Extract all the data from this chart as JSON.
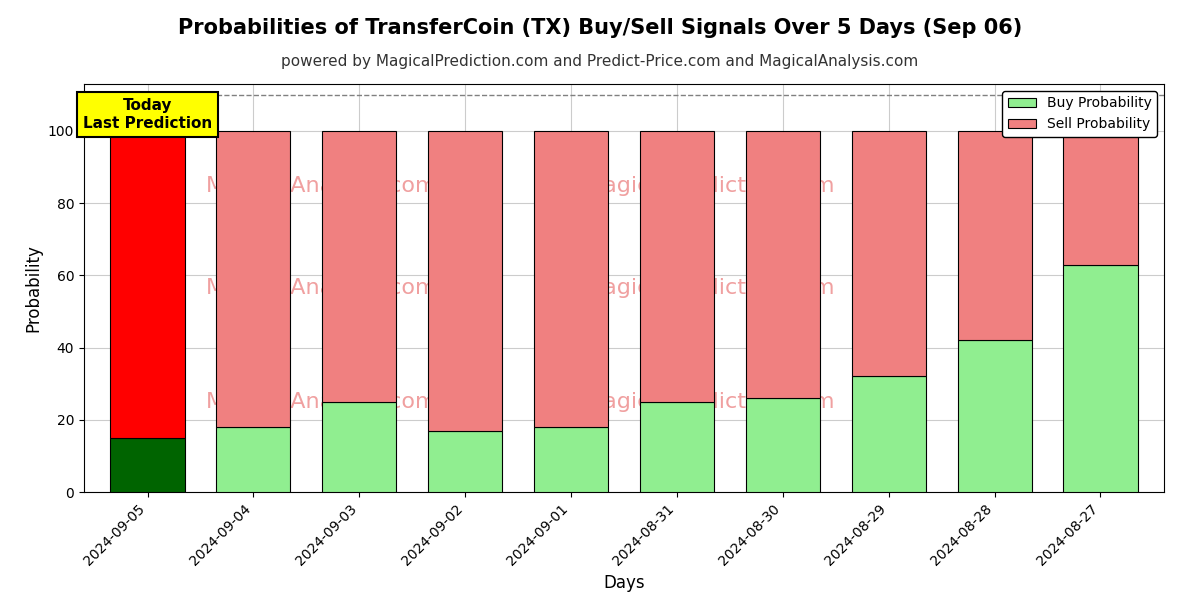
{
  "title": "Probabilities of TransferCoin (TX) Buy/Sell Signals Over 5 Days (Sep 06)",
  "subtitle": "powered by MagicalPrediction.com and Predict-Price.com and MagicalAnalysis.com",
  "xlabel": "Days",
  "ylabel": "Probability",
  "dates": [
    "2024-09-05",
    "2024-09-04",
    "2024-09-03",
    "2024-09-02",
    "2024-09-01",
    "2024-08-31",
    "2024-08-30",
    "2024-08-29",
    "2024-08-28",
    "2024-08-27"
  ],
  "buy_values": [
    15,
    18,
    25,
    17,
    18,
    25,
    26,
    32,
    42,
    63
  ],
  "sell_values": [
    85,
    82,
    75,
    83,
    82,
    75,
    74,
    68,
    58,
    37
  ],
  "buy_color_today": "#006400",
  "sell_color_today": "#ff0000",
  "buy_color_past": "#90ee90",
  "sell_color_past": "#f08080",
  "bar_edge_color": "#000000",
  "ylim": [
    0,
    113
  ],
  "yticks": [
    0,
    20,
    40,
    60,
    80,
    100
  ],
  "dashed_line_y": 110,
  "today_annotation": "Today\nLast Prediction",
  "today_box_color": "#ffff00",
  "today_box_edge": "#000000",
  "legend_buy_label": "Buy Probability",
  "legend_sell_label": "Sell Probability",
  "watermark_color": "#f0a0a0",
  "background_color": "#ffffff",
  "grid_color": "#cccccc",
  "title_fontsize": 15,
  "subtitle_fontsize": 11,
  "axis_label_fontsize": 12,
  "tick_fontsize": 10
}
